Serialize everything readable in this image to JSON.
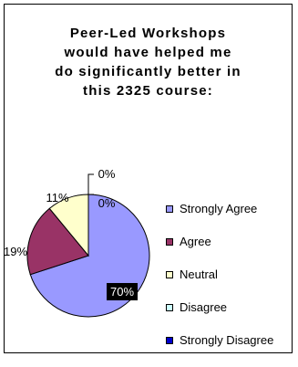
{
  "chart_data": {
    "type": "pie",
    "title": "Peer-Led Workshops\nwould have helped me\ndo significantly better in\nthis 2325 course:",
    "categories": [
      "Strongly Agree",
      "Agree",
      "Neutral",
      "Disagree",
      "Strongly Disagree"
    ],
    "values": [
      70,
      19,
      11,
      0,
      0
    ],
    "data_labels": [
      "70%",
      "19%",
      "11%",
      "0%",
      "0%"
    ],
    "colors": [
      "#9999ff",
      "#993366",
      "#ffffcc",
      "#ccffff",
      "#0000cc"
    ],
    "legend_position": "right"
  }
}
